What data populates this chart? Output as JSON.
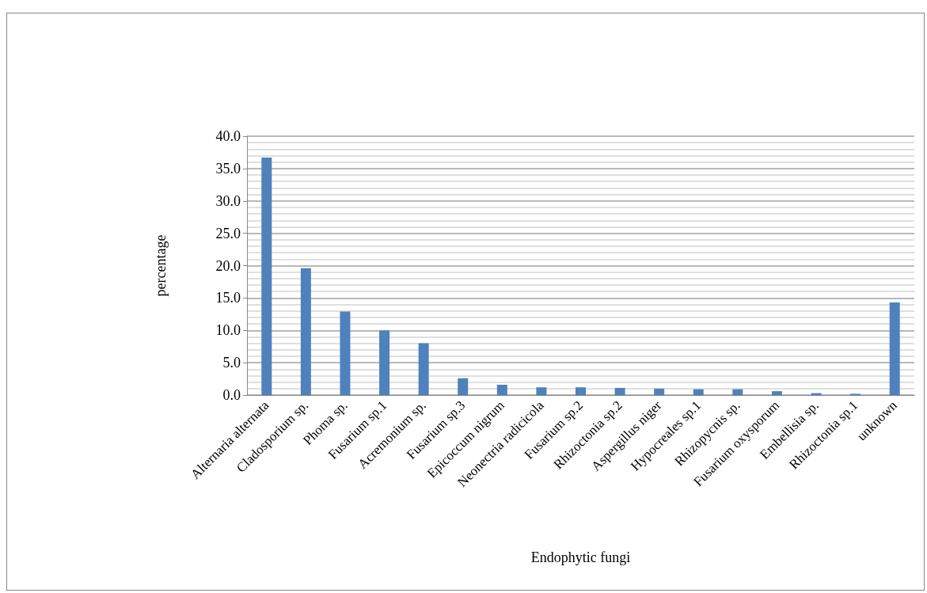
{
  "chart_data": {
    "type": "bar",
    "xlabel": "Endophytic fungi",
    "ylabel": "percentage",
    "categories": [
      "Alternaria alternata",
      "Cladosporium sp.",
      "Phoma sp.",
      "Fusarium sp.1",
      "Acremonium sp.",
      "Fusarium sp.3",
      "Epicoccum nigrum",
      "Neonectria radicicola",
      "Fusarium sp.2",
      "Rhizoctonia sp.2",
      "Aspergillus niger",
      "Hypocreales sp.1",
      "Rhizopycnis sp.",
      "Fusarium oxysporum",
      "Embellisia sp.",
      "Rhizoctonia sp.1",
      "unknown"
    ],
    "values": [
      36.7,
      19.6,
      12.9,
      10.0,
      8.0,
      2.6,
      1.6,
      1.2,
      1.2,
      1.1,
      1.0,
      0.9,
      0.9,
      0.6,
      0.3,
      0.2,
      14.3
    ],
    "color": "#4f81bd",
    "ylim": [
      0,
      40
    ],
    "yticks": [
      {
        "value": 0,
        "label": "0.0"
      },
      {
        "value": 5,
        "label": "5.0"
      },
      {
        "value": 10,
        "label": "10.0"
      },
      {
        "value": 15,
        "label": "15.0"
      },
      {
        "value": 20,
        "label": "20.0"
      },
      {
        "value": 25,
        "label": "25.0"
      },
      {
        "value": 30,
        "label": "30.0"
      },
      {
        "value": 35,
        "label": "35.0"
      },
      {
        "value": 40,
        "label": "40.0"
      }
    ],
    "grid": "y"
  }
}
